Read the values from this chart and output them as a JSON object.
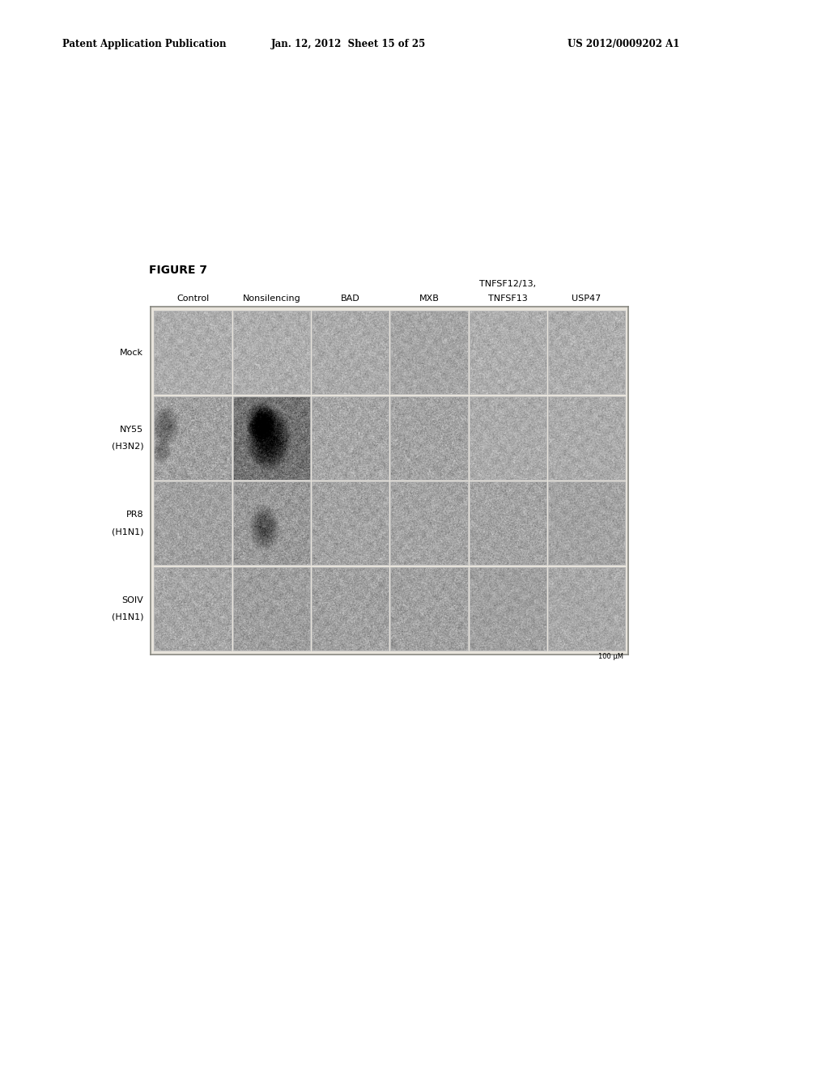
{
  "page_header_left": "Patent Application Publication",
  "page_header_mid": "Jan. 12, 2012  Sheet 15 of 25",
  "page_header_right": "US 2012/0009202 A1",
  "figure_label": "FIGURE 7",
  "col_headers_line1": [
    "",
    "",
    "",
    "",
    "TNFSF12/13,",
    ""
  ],
  "col_headers_line2": [
    "Control",
    "Nonsilencing",
    "BAD",
    "MXB",
    "TNFSF13",
    "USP47"
  ],
  "row_headers": [
    "Mock",
    "NY55\n(H3N2)",
    "PR8\n(H1N1)",
    "SOIV\n(H1N1)"
  ],
  "scale_bar_text": "100 μM",
  "n_rows": 4,
  "n_cols": 6,
  "page_bg": "#ffffff",
  "figure_area_bg": "#e8e4dc",
  "cell_base_gray": [
    [
      0.68,
      0.68,
      0.67,
      0.65,
      0.68,
      0.68
    ],
    [
      0.63,
      0.45,
      0.65,
      0.64,
      0.67,
      0.67
    ],
    [
      0.63,
      0.6,
      0.64,
      0.64,
      0.64,
      0.64
    ],
    [
      0.65,
      0.62,
      0.63,
      0.63,
      0.63,
      0.66
    ]
  ],
  "cell_noise_std": [
    [
      0.07,
      0.07,
      0.07,
      0.07,
      0.07,
      0.07
    ],
    [
      0.09,
      0.1,
      0.08,
      0.08,
      0.07,
      0.07
    ],
    [
      0.08,
      0.09,
      0.08,
      0.08,
      0.08,
      0.07
    ],
    [
      0.08,
      0.08,
      0.08,
      0.08,
      0.07,
      0.07
    ]
  ],
  "header_fontsize": 8,
  "row_label_fontsize": 8,
  "col_label_fontsize": 8,
  "figure_label_fontsize": 10
}
